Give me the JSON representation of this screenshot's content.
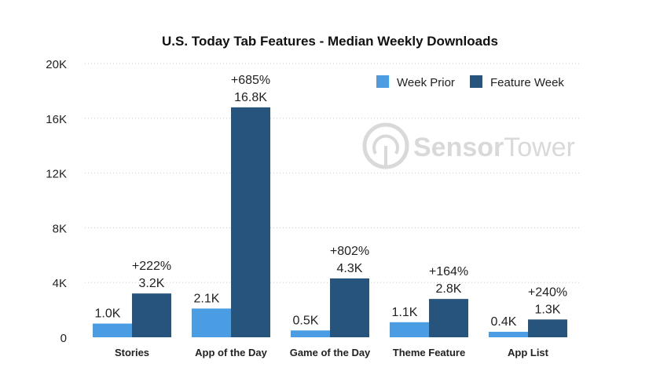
{
  "chart_data": {
    "type": "bar",
    "title": "U.S. Today Tab Features - Median Weekly Downloads",
    "xlabel": "",
    "ylabel": "",
    "ylim": [
      0,
      20000
    ],
    "yticks": [
      0,
      4000,
      8000,
      12000,
      16000,
      20000
    ],
    "ytick_labels": [
      "0",
      "4K",
      "8K",
      "12K",
      "16K",
      "20K"
    ],
    "grid": true,
    "legend_position": "top-right",
    "categories": [
      "Stories",
      "App of the Day",
      "Game of the Day",
      "Theme Feature",
      "App List"
    ],
    "series": [
      {
        "name": "Week Prior",
        "color": "#4a9de3",
        "values": [
          1000,
          2100,
          500,
          1100,
          400
        ],
        "labels": [
          "1.0K",
          "2.1K",
          "0.5K",
          "1.1K",
          "0.4K"
        ]
      },
      {
        "name": "Feature Week",
        "color": "#27547d",
        "values": [
          3200,
          16800,
          4300,
          2800,
          1300
        ],
        "labels": [
          "3.2K",
          "16.8K",
          "4.3K",
          "2.8K",
          "1.3K"
        ]
      }
    ],
    "annotations": [
      "+222%",
      "+685%",
      "+802%",
      "+164%",
      "+240%"
    ]
  },
  "watermark": {
    "bold": "Sensor",
    "light": "Tower"
  }
}
